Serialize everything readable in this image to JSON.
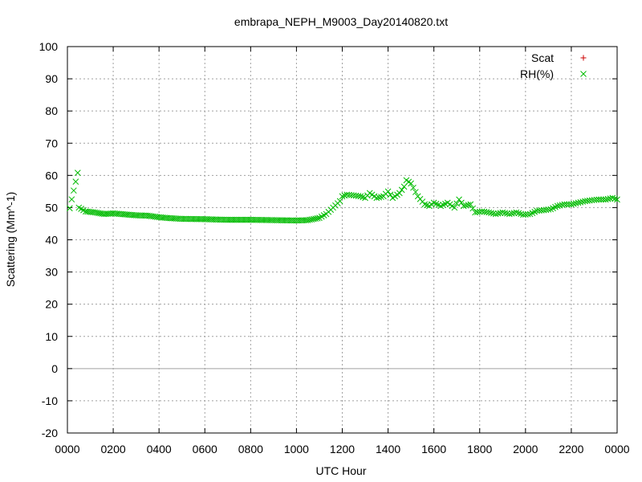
{
  "chart_data": {
    "type": "scatter",
    "title": "embrapa_NEPH_M9003_Day20140820.txt",
    "xlabel": "UTC Hour",
    "ylabel": "Scattering (Mm^-1)",
    "xlim": [
      0,
      24
    ],
    "ylim": [
      -20,
      100
    ],
    "grid": true,
    "legend_position": "top-right",
    "x_ticks": [
      {
        "value": 0,
        "label": "0000"
      },
      {
        "value": 2,
        "label": "0200"
      },
      {
        "value": 4,
        "label": "0400"
      },
      {
        "value": 6,
        "label": "0600"
      },
      {
        "value": 8,
        "label": "0800"
      },
      {
        "value": 10,
        "label": "1000"
      },
      {
        "value": 12,
        "label": "1200"
      },
      {
        "value": 14,
        "label": "1400"
      },
      {
        "value": 16,
        "label": "1600"
      },
      {
        "value": 18,
        "label": "1800"
      },
      {
        "value": 20,
        "label": "2000"
      },
      {
        "value": 22,
        "label": "2200"
      },
      {
        "value": 24,
        "label": "0000"
      }
    ],
    "y_ticks": [
      -20,
      -10,
      0,
      10,
      20,
      30,
      40,
      50,
      60,
      70,
      80,
      90,
      100
    ],
    "series": [
      {
        "name": "Scat",
        "marker": "plus",
        "color": "#cc0000",
        "x": [],
        "y": []
      },
      {
        "name": "RH(%)",
        "marker": "x",
        "color": "#00bb00",
        "x": [
          0.1,
          0.45,
          0.5,
          0.8,
          1.2,
          1.6,
          2.0,
          2.5,
          3.0,
          3.5,
          4.0,
          4.5,
          5.0,
          6.0,
          7.0,
          8.0,
          9.0,
          10.0,
          10.5,
          11.0,
          11.3,
          11.6,
          11.9,
          12.0,
          12.2,
          12.5,
          12.8,
          13.0,
          13.2,
          13.5,
          13.8,
          14.0,
          14.2,
          14.5,
          14.7,
          14.8,
          15.0,
          15.3,
          15.6,
          15.8,
          16.0,
          16.3,
          16.6,
          16.9,
          17.1,
          17.3,
          17.6,
          17.8,
          18.1,
          18.4,
          18.7,
          19.0,
          19.3,
          19.6,
          19.9,
          20.2,
          20.5,
          20.8,
          21.1,
          21.4,
          21.7,
          22.0,
          22.3,
          22.6,
          22.9,
          23.2,
          23.5,
          23.8,
          24.0
        ],
        "y": [
          49.8,
          60.8,
          50.0,
          48.8,
          48.5,
          48.0,
          48.2,
          47.9,
          47.6,
          47.5,
          47.0,
          46.7,
          46.5,
          46.4,
          46.2,
          46.2,
          46.1,
          46.0,
          46.1,
          46.8,
          48.0,
          50.0,
          52.0,
          53.5,
          54.0,
          53.8,
          53.5,
          53.0,
          54.5,
          53.0,
          53.5,
          55.0,
          53.0,
          54.5,
          56.5,
          58.5,
          57.5,
          53.5,
          51.0,
          50.5,
          51.5,
          50.5,
          51.5,
          50.0,
          52.5,
          50.5,
          51.0,
          48.5,
          48.8,
          48.5,
          48.0,
          48.5,
          48.0,
          48.5,
          47.8,
          48.0,
          49.0,
          49.2,
          49.5,
          50.5,
          51.0,
          51.0,
          51.5,
          52.0,
          52.3,
          52.5,
          52.5,
          53.0,
          52.5
        ]
      }
    ]
  }
}
